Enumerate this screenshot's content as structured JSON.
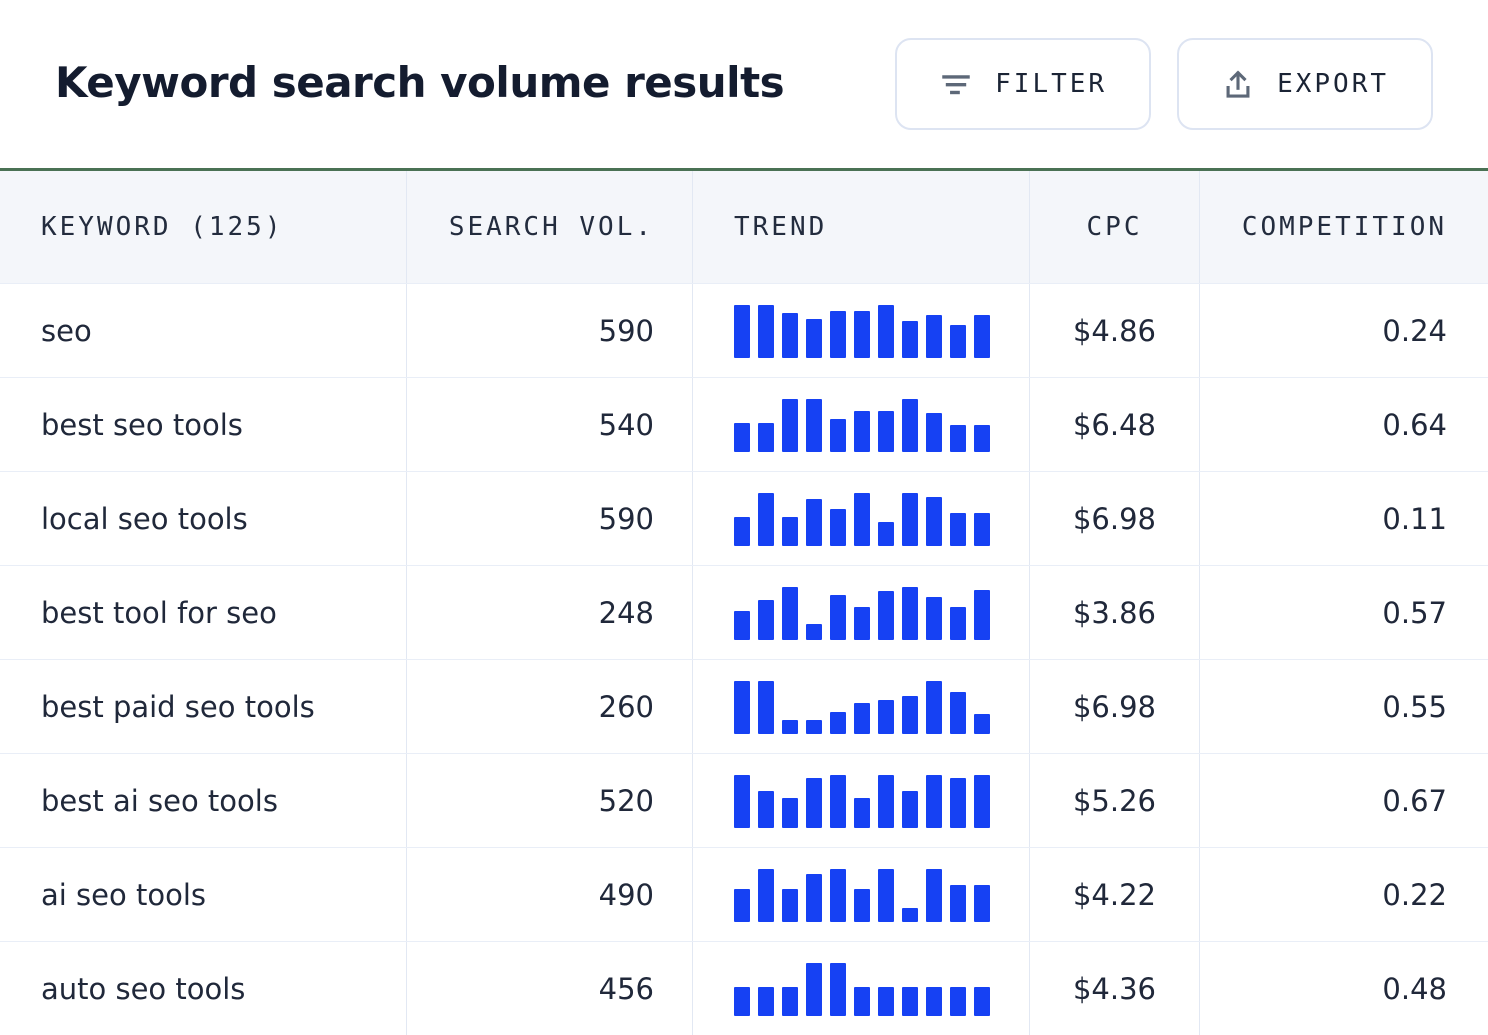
{
  "page": {
    "title": "Keyword search volume results"
  },
  "toolbar": {
    "filter_label": "FILTER",
    "export_label": "EXPORT",
    "filter_icon": "filter-lines",
    "export_icon": "upload-arrow"
  },
  "colors": {
    "trend_bar_blue": "#1641F3",
    "header_accent_green": "#4A7154",
    "text_dark_navy": "#1A2233"
  },
  "table": {
    "columns": [
      {
        "id": "keyword",
        "label": "KEYWORD (125)"
      },
      {
        "id": "search_vol",
        "label": "SEARCH VOL."
      },
      {
        "id": "trend",
        "label": "TREND"
      },
      {
        "id": "cpc",
        "label": "CPC"
      },
      {
        "id": "competition",
        "label": "COMPETITION"
      }
    ],
    "rows": [
      {
        "keyword": "seo",
        "search_vol": "590",
        "cpc": "$4.86",
        "competition": "0.24",
        "trend": [
          1.0,
          1.0,
          0.85,
          0.73,
          0.89,
          0.89,
          1.0,
          0.69,
          0.81,
          0.62,
          0.81
        ]
      },
      {
        "keyword": "best seo tools",
        "search_vol": "540",
        "cpc": "$6.48",
        "competition": "0.64",
        "trend": [
          0.55,
          0.55,
          1.0,
          1.0,
          0.62,
          0.77,
          0.77,
          1.0,
          0.74,
          0.5,
          0.5
        ]
      },
      {
        "keyword": "local seo tools",
        "search_vol": "590",
        "cpc": "$6.98",
        "competition": "0.11",
        "trend": [
          0.55,
          1.0,
          0.55,
          0.88,
          0.7,
          1.0,
          0.46,
          1.0,
          0.93,
          0.62,
          0.62
        ]
      },
      {
        "keyword": "best tool for seo",
        "search_vol": "248",
        "cpc": "$3.86",
        "competition": "0.57",
        "trend": [
          0.55,
          0.75,
          1.0,
          0.31,
          0.85,
          0.62,
          0.93,
          1.0,
          0.81,
          0.62,
          0.95
        ]
      },
      {
        "keyword": "best paid seo tools",
        "search_vol": "260",
        "cpc": "$6.98",
        "competition": "0.55",
        "trend": [
          1.0,
          1.0,
          0.26,
          0.26,
          0.42,
          0.58,
          0.64,
          0.72,
          1.0,
          0.79,
          0.37
        ]
      },
      {
        "keyword": "best ai seo tools",
        "search_vol": "520",
        "cpc": "$5.26",
        "competition": "0.67",
        "trend": [
          1.0,
          0.7,
          0.57,
          0.94,
          1.0,
          0.57,
          1.0,
          0.7,
          1.0,
          0.94,
          1.0
        ]
      },
      {
        "keyword": "ai seo tools",
        "search_vol": "490",
        "cpc": "$4.22",
        "competition": "0.22",
        "trend": [
          0.63,
          1.0,
          0.63,
          0.91,
          1.0,
          0.63,
          1.0,
          0.27,
          1.0,
          0.69,
          0.69
        ]
      },
      {
        "keyword": "auto seo tools",
        "search_vol": "456",
        "cpc": "$4.36",
        "competition": "0.48",
        "trend": [
          0.54,
          0.54,
          0.54,
          1.0,
          1.0,
          0.54,
          0.54,
          0.54,
          0.54,
          0.54,
          0.54
        ]
      }
    ]
  }
}
